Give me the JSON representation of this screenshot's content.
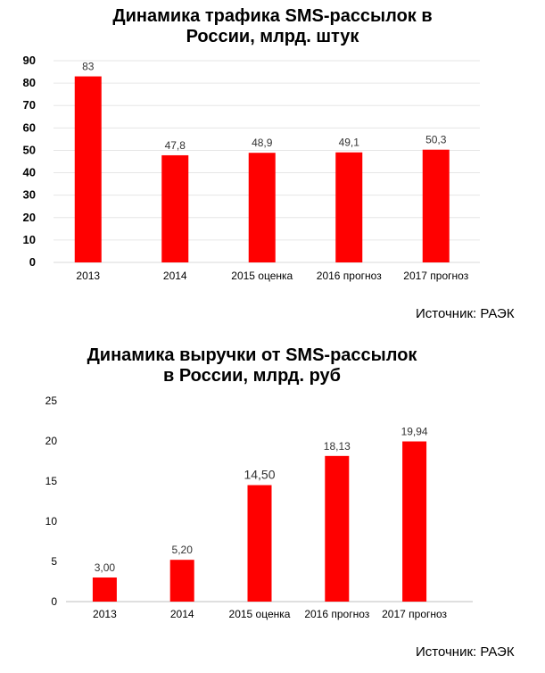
{
  "chart_data": [
    {
      "type": "bar",
      "title_lines": [
        "Динамика трафика SMS-рассылок в",
        "России, млрд. штук"
      ],
      "categories": [
        "2013",
        "2014",
        "2015 оценка",
        "2016 прогноз",
        "2017 прогноз"
      ],
      "values": [
        83,
        47.8,
        48.9,
        49.1,
        50.3
      ],
      "value_labels": [
        "83",
        "47,8",
        "48,9",
        "49,1",
        "50,3"
      ],
      "ylim": [
        0,
        90
      ],
      "yticks": [
        "0",
        "10",
        "20",
        "30",
        "40",
        "50",
        "60",
        "70",
        "80",
        "90"
      ],
      "grid": true,
      "bar_color": "#ff0000",
      "source": "Источник: РАЭК"
    },
    {
      "type": "bar",
      "title_lines": [
        "Динамика выручки от SMS-рассылок",
        "в России, млрд. руб"
      ],
      "categories": [
        "2013",
        "2014",
        "2015 оценка",
        "2016 прогноз",
        "2017 прогноз"
      ],
      "values": [
        3.0,
        5.2,
        14.5,
        18.13,
        19.94
      ],
      "value_labels": [
        "3,00",
        "5,20",
        "14,50",
        "18,13",
        "19,94"
      ],
      "ylim": [
        0,
        25
      ],
      "yticks": [
        "0",
        "5",
        "10",
        "15",
        "20",
        "25"
      ],
      "grid": false,
      "bar_color": "#ff0000",
      "source": "Источник: РАЭК"
    }
  ]
}
